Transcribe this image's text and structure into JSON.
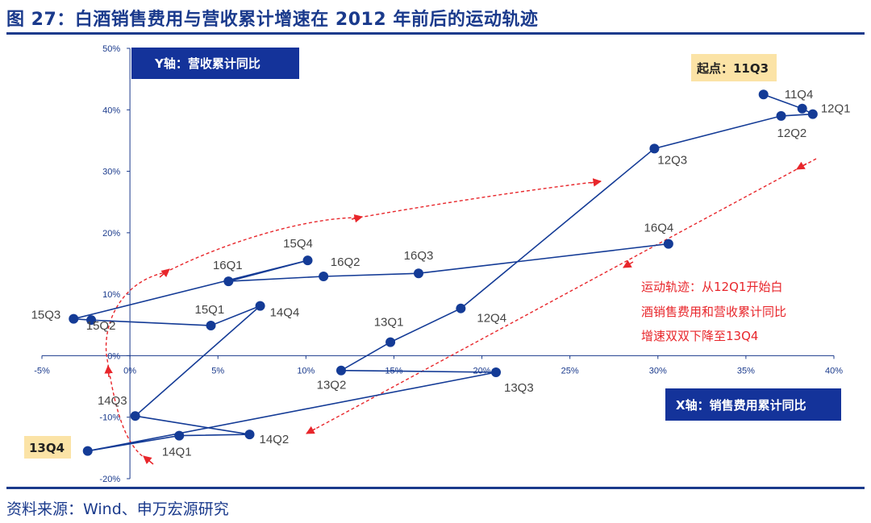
{
  "title": "图 27：白酒销售费用与营收累计增速在 2012 年前后的运动轨迹",
  "source": "资料来源：Wind、申万宏源研究",
  "colors": {
    "series": "#143b96",
    "axis": "#1a3a8c",
    "annotation": "#e8262b",
    "highlight": "#fbe3a6"
  },
  "chart_data": {
    "type": "line",
    "title": "白酒销售费用与营收累计增速在 2012 年前后的运动轨迹",
    "xlabel": "X轴：销售费用累计同比",
    "ylabel": "Y轴：营收累计同比",
    "xlim": [
      -5,
      40
    ],
    "ylim": [
      -20,
      50
    ],
    "x_ticks": [
      "-5%",
      "0%",
      "5%",
      "10%",
      "15%",
      "20%",
      "25%",
      "30%",
      "35%",
      "40%"
    ],
    "y_ticks": [
      "-20%",
      "-10%",
      "0%",
      "10%",
      "20%",
      "30%",
      "40%",
      "50%"
    ],
    "series": [
      {
        "name": "运动轨迹",
        "points": [
          {
            "label": "11Q3",
            "x": 36.0,
            "y": 42.5
          },
          {
            "label": "11Q4",
            "x": 38.2,
            "y": 40.2
          },
          {
            "label": "12Q1",
            "x": 38.8,
            "y": 39.3
          },
          {
            "label": "12Q2",
            "x": 37.0,
            "y": 39.0
          },
          {
            "label": "12Q3",
            "x": 29.8,
            "y": 33.7
          },
          {
            "label": "12Q4",
            "x": 18.8,
            "y": 7.7
          },
          {
            "label": "13Q1",
            "x": 14.8,
            "y": 2.2
          },
          {
            "label": "13Q2",
            "x": 12.0,
            "y": -2.4
          },
          {
            "label": "13Q3",
            "x": 20.8,
            "y": -2.7
          },
          {
            "label": "13Q4",
            "x": -2.4,
            "y": -15.5
          },
          {
            "label": "14Q1",
            "x": 2.8,
            "y": -13.0
          },
          {
            "label": "14Q2",
            "x": 6.8,
            "y": -12.8
          },
          {
            "label": "14Q3",
            "x": 0.3,
            "y": -9.8
          },
          {
            "label": "14Q4",
            "x": 7.4,
            "y": 8.1
          },
          {
            "label": "15Q1",
            "x": 4.6,
            "y": 4.9
          },
          {
            "label": "15Q2",
            "x": -2.2,
            "y": 5.8
          },
          {
            "label": "15Q3",
            "x": -3.2,
            "y": 6.0
          },
          {
            "label": "15Q4",
            "x": 10.1,
            "y": 15.5
          },
          {
            "label": "16Q1",
            "x": 5.6,
            "y": 12.1
          },
          {
            "label": "16Q2",
            "x": 11.0,
            "y": 12.9
          },
          {
            "label": "16Q3",
            "x": 16.4,
            "y": 13.4
          },
          {
            "label": "16Q4",
            "x": 30.6,
            "y": 18.2
          }
        ]
      }
    ],
    "annotations": {
      "start_label": "起点：11Q3",
      "end_label": "13Q4",
      "note_lines": [
        "运动轨迹：从12Q1开始白",
        "酒销售费用和营收累计同比",
        "增速双双下降至13Q4"
      ]
    }
  }
}
